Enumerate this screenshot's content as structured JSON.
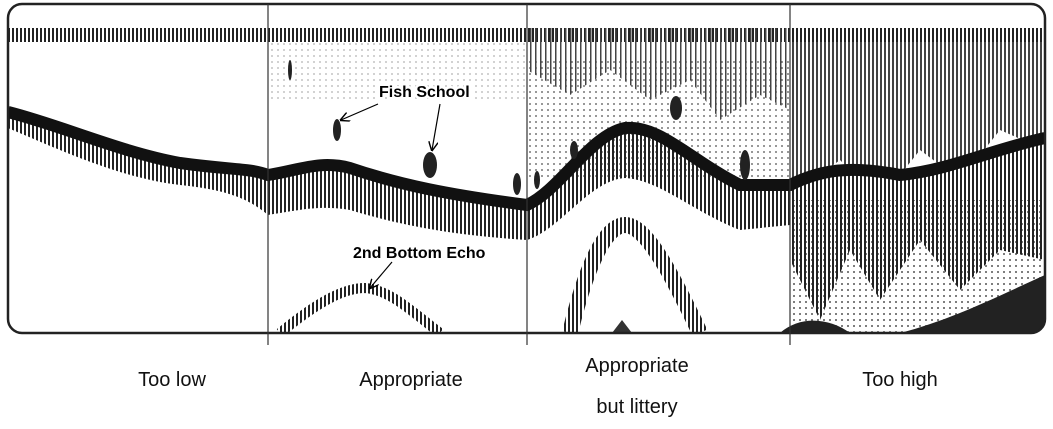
{
  "annotations": {
    "fish_school": "Fish School",
    "second_bottom_echo": "2nd Bottom Echo"
  },
  "panels": [
    {
      "label_lines": [
        "Too low"
      ]
    },
    {
      "label_lines": [
        "Appropriate"
      ]
    },
    {
      "label_lines": [
        "Appropriate",
        "but littery"
      ]
    },
    {
      "label_lines": [
        "Too high"
      ]
    }
  ]
}
